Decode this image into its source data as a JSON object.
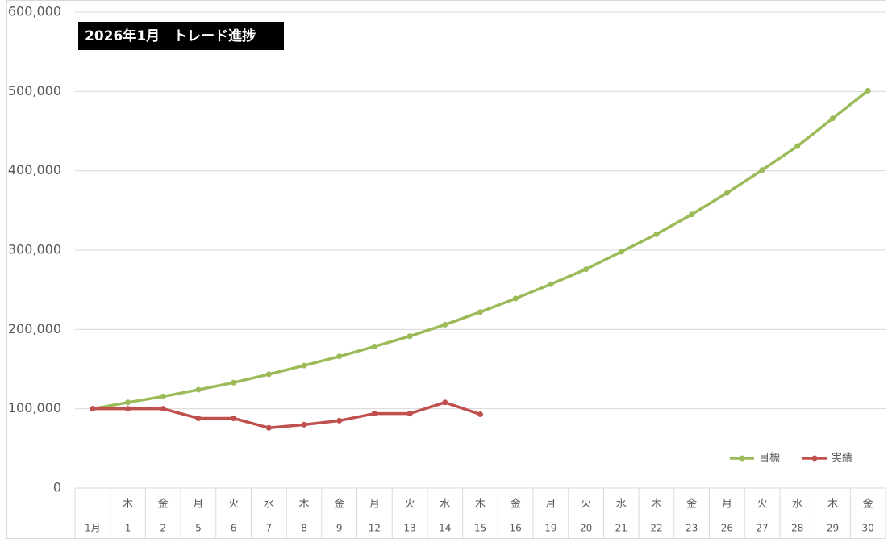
{
  "chart_data": {
    "type": "line",
    "title": "2026年1月　トレード進捗",
    "categories": [
      "1月",
      "1",
      "2",
      "5",
      "6",
      "7",
      "8",
      "9",
      "12",
      "13",
      "14",
      "15",
      "16",
      "19",
      "20",
      "21",
      "22",
      "23",
      "26",
      "27",
      "28",
      "29",
      "30"
    ],
    "weekdays": [
      null,
      "木",
      "金",
      "月",
      "火",
      "水",
      "木",
      "金",
      "月",
      "火",
      "水",
      "木",
      "金",
      "月",
      "火",
      "水",
      "木",
      "金",
      "月",
      "火",
      "水",
      "木",
      "金"
    ],
    "series": [
      {
        "name": "目標",
        "color": "#9bbb59",
        "values": [
          100000,
          108000,
          115500,
          124000,
          133000,
          143500,
          154500,
          166000,
          178500,
          191500,
          206000,
          222000,
          239000,
          257000,
          276000,
          298000,
          320000,
          345000,
          372000,
          401000,
          431000,
          466000,
          501000
        ]
      },
      {
        "name": "実績",
        "color": "#c0504d",
        "values": [
          100000,
          100000,
          100000,
          88000,
          88000,
          76000,
          80000,
          85000,
          94000,
          94000,
          108000,
          93000,
          null,
          null,
          null,
          null,
          null,
          null,
          null,
          null,
          null,
          null,
          null
        ]
      }
    ],
    "ylim": [
      0,
      600000
    ],
    "yticks": [
      0,
      {
        "value": 100000,
        "label": "100,000"
      },
      {
        "value": 200000,
        "label": "200,000"
      },
      {
        "value": 300000,
        "label": "300,000"
      },
      {
        "value": 400000,
        "label": "400,000"
      },
      {
        "value": 500000,
        "label": "500,000"
      },
      {
        "value": 600000,
        "label": "600,000"
      }
    ],
    "grid": true,
    "legend": "lower right"
  }
}
